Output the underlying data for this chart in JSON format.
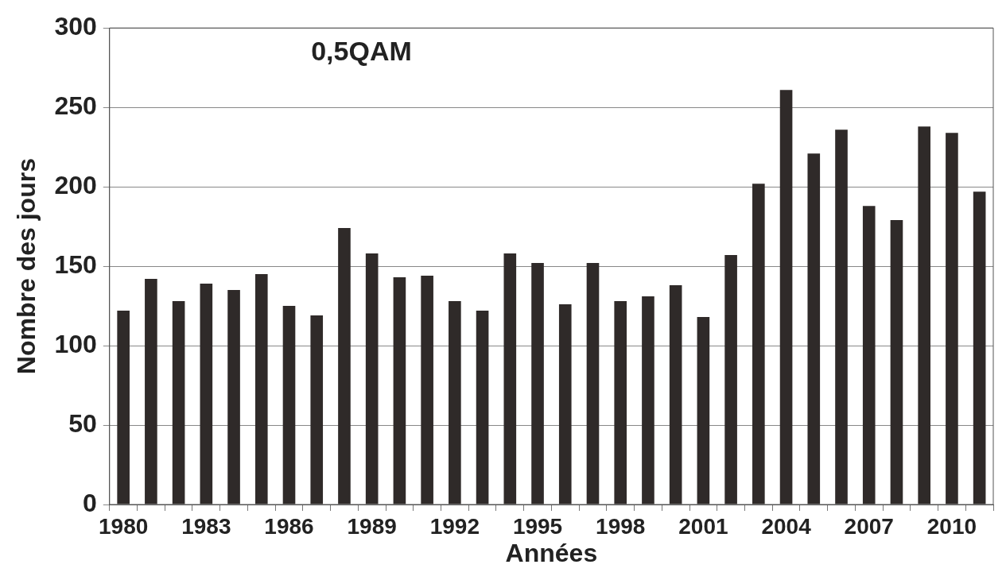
{
  "chart_data": {
    "type": "bar",
    "title": "0,5QAM",
    "xlabel": "Années",
    "ylabel": "Nombre des jours",
    "categories": [
      "1980",
      null,
      null,
      "1983",
      null,
      null,
      "1986",
      null,
      null,
      "1989",
      null,
      null,
      "1992",
      null,
      null,
      "1995",
      null,
      null,
      "1998",
      null,
      null,
      "2001",
      null,
      null,
      "2004",
      null,
      null,
      "2007",
      null,
      null,
      "2010",
      null
    ],
    "values": [
      122,
      142,
      128,
      139,
      135,
      145,
      125,
      119,
      174,
      158,
      143,
      144,
      128,
      122,
      158,
      152,
      126,
      152,
      128,
      131,
      138,
      118,
      157,
      202,
      261,
      221,
      236,
      188,
      179,
      238,
      234,
      197
    ],
    "color": "#2f2a29",
    "ylim": [
      0,
      300
    ],
    "yticks": [
      0,
      50,
      100,
      150,
      200,
      250,
      300
    ],
    "grid": "y"
  }
}
